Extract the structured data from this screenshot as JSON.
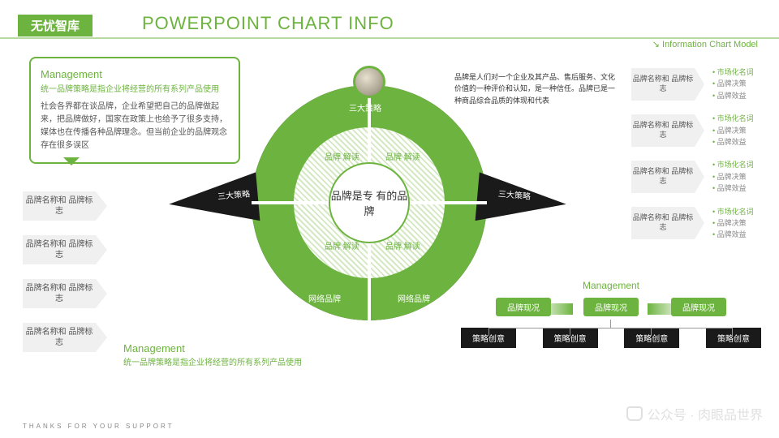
{
  "colors": {
    "green": "#6db33f",
    "black": "#1a1a1a",
    "grey": "#f0f0f0",
    "text": "#555555"
  },
  "header": {
    "tag": "无忧智库",
    "title": "POWERPOINT CHART INFO",
    "subtitle": "Information Chart Model"
  },
  "callout": {
    "title": "Management",
    "p1": "统一品牌策略是指企业将经营的所有系列产品使用",
    "p2": "社会各界都在谈品牌，企业希望把自己的品牌做起来，把品牌做好，国家在政策上也给予了很多支持，媒体也在传播各种品牌理念。但当前企业的品牌观念存在很多误区"
  },
  "leftChips": [
    "品牌名称和\n品牌标志",
    "品牌名称和\n品牌标志",
    "品牌名称和\n品牌标志",
    "品牌名称和\n品牌标志"
  ],
  "circle": {
    "center": "品牌是专\n有的品牌",
    "segTop": "三大策略",
    "segBL": "网络品牌",
    "segBR": "网络品牌",
    "inner": [
      "品牌\n解读",
      "品牌\n解读",
      "品牌\n解读",
      "品牌\n解读"
    ]
  },
  "arrows": {
    "left": "三大策略",
    "right": "三大策略",
    "sideRight": "三大策略"
  },
  "desc": "品牌是人们对一个企业及其产品、售后服务、文化价值的一种评价和认知，是一种信任。品牌已是一种商品综合品质的体现和代表",
  "rightChips": {
    "label": "品牌名称和\n品牌标志",
    "items": [
      "市场化名词",
      "品牌决策",
      "品牌效益"
    ],
    "rows": 4
  },
  "mgmt2": {
    "title": "Management",
    "p": "统一品牌策略是指企业将经营的所有系列产品使用"
  },
  "mgmt3": {
    "title": "Management",
    "pills": [
      "品牌现况",
      "品牌现况",
      "品牌现况"
    ],
    "boxes": [
      "策略创意",
      "策略创意",
      "策略创意",
      "策略创意"
    ]
  },
  "footer": "THANKS FOR YOUR SUPPORT",
  "watermark": "公众号 · 肉眼品世界"
}
